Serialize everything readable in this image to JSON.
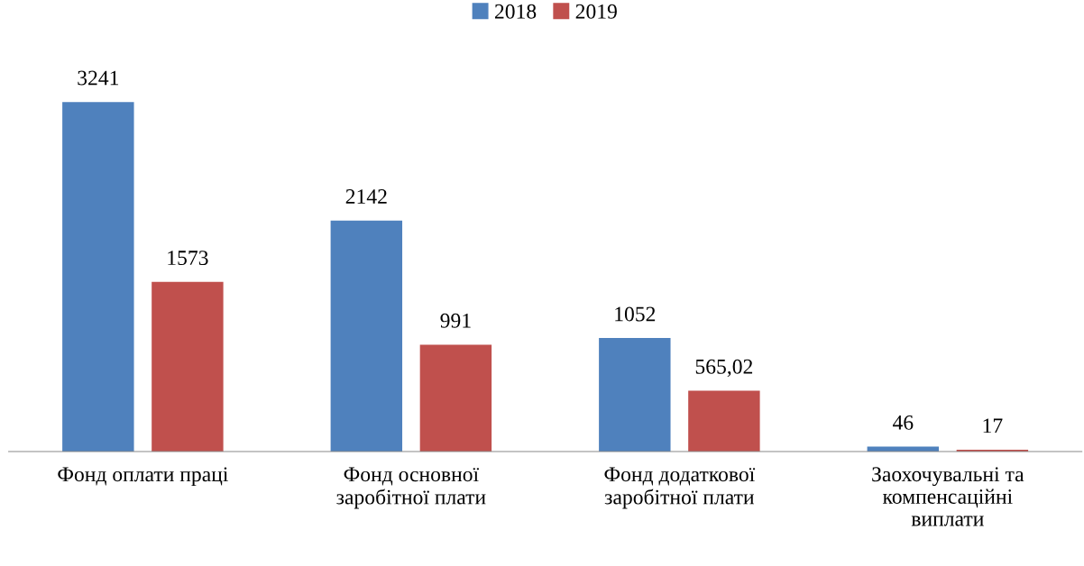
{
  "chart_data": {
    "type": "bar",
    "categories": [
      "Фонд оплати праці",
      "Фонд основної\nзаробітної плати",
      "Фонд додаткової\nзаробітної плати",
      "Заохочувальні та\nкомпенсаційні\nвиплати"
    ],
    "series": [
      {
        "name": "2018",
        "color": "#4f81bd",
        "values": [
          3241,
          2142,
          1052,
          46
        ],
        "value_labels": [
          "3241",
          "2142",
          "1052",
          "46"
        ]
      },
      {
        "name": "2019",
        "color": "#c0504d",
        "values": [
          1573,
          991,
          565.02,
          17
        ],
        "value_labels": [
          "1573",
          "991",
          "565,02",
          "17"
        ]
      }
    ],
    "legend": "top",
    "grid": false,
    "tick_labels": "x"
  }
}
